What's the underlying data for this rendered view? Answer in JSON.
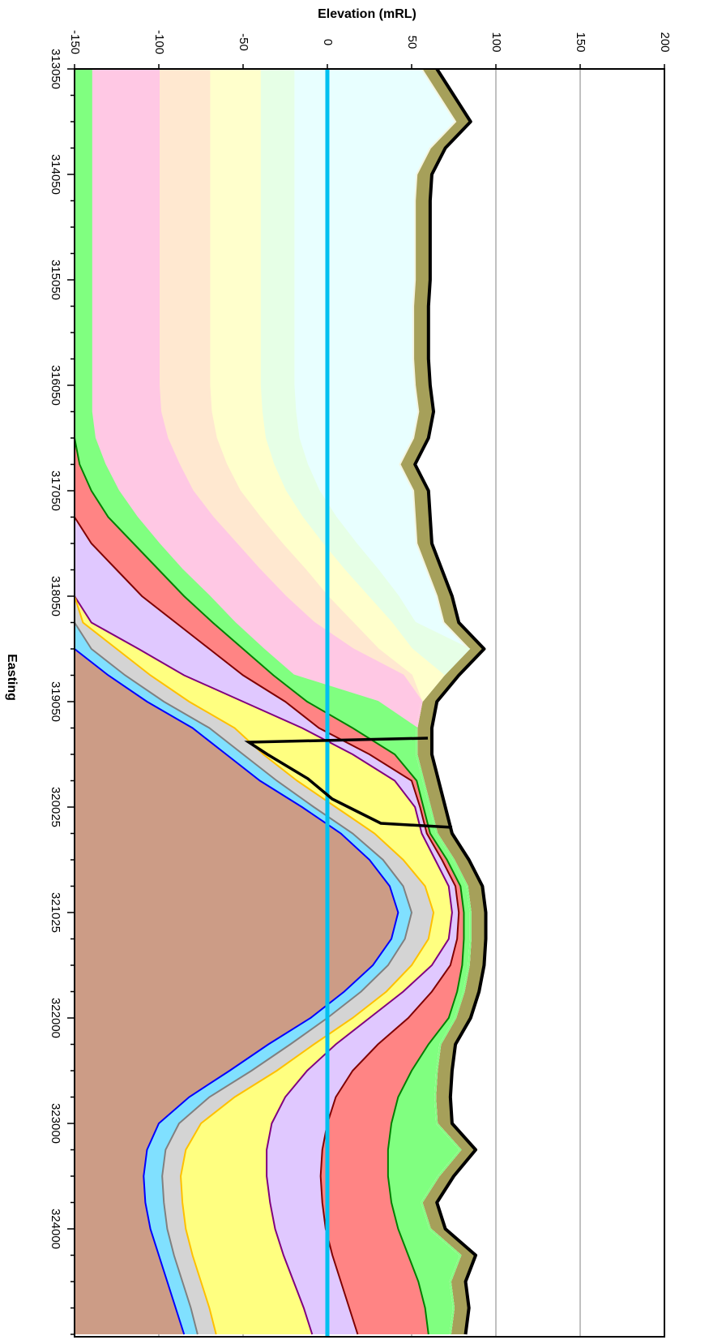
{
  "chart_data": {
    "type": "section",
    "xlabel": "Easting",
    "ylabel": "Elevation (mRL)",
    "ylim": [
      -150,
      200
    ],
    "yticks": [
      -150,
      -100,
      -50,
      0,
      50,
      100,
      150,
      200
    ],
    "grid": true,
    "hline": {
      "value": 0,
      "color": "#00c0f0"
    },
    "categories": [
      "313050",
      null,
      null,
      null,
      "314050",
      null,
      null,
      null,
      "315050",
      null,
      null,
      null,
      "316050",
      null,
      null,
      null,
      "317050",
      null,
      null,
      null,
      "318050",
      null,
      null,
      null,
      "319050",
      null,
      null,
      null,
      "320025",
      null,
      null,
      null,
      "321025",
      null,
      null,
      null,
      "322000",
      null,
      null,
      null,
      "323000",
      null,
      null,
      null,
      "324000",
      null,
      null,
      null,
      null
    ],
    "series": [
      {
        "color": "#a6a05a",
        "edge": "#000000",
        "values": [
          65,
          75,
          85,
          70,
          62,
          61,
          61,
          61,
          61,
          60,
          60,
          60,
          61,
          63,
          60,
          52,
          60,
          61,
          62,
          68,
          74,
          78,
          93,
          78,
          65,
          62,
          62,
          66,
          70,
          74,
          84,
          92,
          94,
          94,
          93,
          90,
          85,
          76,
          74,
          73,
          74,
          88,
          75,
          65,
          70,
          88,
          82,
          84,
          82
        ]
      },
      {
        "color": "#e8ffff",
        "edge": "#f4f4e0",
        "values": [
          56,
          66,
          76,
          61,
          53,
          52,
          52,
          52,
          52,
          51,
          51,
          51,
          52,
          54,
          51,
          43,
          51,
          52,
          53,
          59,
          65,
          69,
          84,
          69,
          56,
          53,
          53,
          57,
          61,
          65,
          75,
          83,
          85,
          85,
          84,
          81,
          76,
          67,
          65,
          64,
          65,
          79,
          66,
          56,
          61,
          79,
          73,
          75,
          73
        ]
      },
      {
        "color": "#e6ffe6",
        "edge": "#e6ffe6",
        "values": [
          -20,
          -20,
          -20,
          -20,
          -20,
          -20,
          -20,
          -20,
          -20,
          -20,
          -20,
          -20,
          -20,
          -19,
          -17,
          -12,
          -5,
          5,
          17,
          30,
          42,
          52,
          84,
          69,
          56,
          53,
          53,
          57,
          61,
          65,
          75,
          83,
          85,
          85,
          84,
          81,
          76,
          67,
          65,
          64,
          65,
          79,
          66,
          56,
          61,
          79,
          73,
          75,
          73
        ]
      },
      {
        "color": "#ffffcc",
        "edge": "#ffffcc",
        "values": [
          -40,
          -40,
          -40,
          -40,
          -40,
          -40,
          -40,
          -40,
          -40,
          -40,
          -40,
          -40,
          -40,
          -39,
          -37,
          -32,
          -25,
          -15,
          -3,
          10,
          24,
          38,
          50,
          69,
          56,
          53,
          53,
          57,
          61,
          65,
          75,
          83,
          85,
          85,
          84,
          81,
          76,
          67,
          65,
          64,
          65,
          79,
          66,
          56,
          61,
          79,
          73,
          75,
          73
        ]
      },
      {
        "color": "#ffe8d0",
        "edge": "#ffe8d0",
        "values": [
          -70,
          -70,
          -70,
          -70,
          -70,
          -70,
          -70,
          -70,
          -70,
          -70,
          -70,
          -70,
          -70,
          -69,
          -66,
          -60,
          -52,
          -40,
          -27,
          -13,
          0,
          15,
          30,
          50,
          56,
          53,
          53,
          57,
          61,
          65,
          75,
          83,
          85,
          85,
          84,
          81,
          76,
          67,
          65,
          64,
          65,
          79,
          66,
          56,
          61,
          79,
          73,
          75,
          73
        ]
      },
      {
        "color": "#ffc8e4",
        "edge": "#ffc8e4",
        "values": [
          -100,
          -100,
          -100,
          -100,
          -100,
          -100,
          -100,
          -100,
          -100,
          -100,
          -100,
          -100,
          -100,
          -99,
          -95,
          -88,
          -80,
          -68,
          -54,
          -40,
          -25,
          -8,
          15,
          45,
          56,
          53,
          53,
          57,
          61,
          65,
          75,
          83,
          85,
          85,
          84,
          81,
          76,
          67,
          65,
          64,
          65,
          79,
          66,
          56,
          61,
          79,
          73,
          75,
          73
        ]
      },
      {
        "color": "#80ff80",
        "edge": "#80ff80",
        "values": [
          -140,
          -140,
          -140,
          -140,
          -140,
          -140,
          -140,
          -140,
          -140,
          -140,
          -140,
          -140,
          -140,
          -140,
          -138,
          -132,
          -124,
          -113,
          -100,
          -86,
          -70,
          -55,
          -38,
          -20,
          30,
          53,
          53,
          57,
          61,
          65,
          75,
          83,
          85,
          85,
          84,
          81,
          76,
          67,
          65,
          64,
          65,
          79,
          66,
          56,
          61,
          79,
          73,
          75,
          73
        ]
      },
      {
        "color": "#ff8484",
        "edge": "#008000",
        "values": [
          -150,
          -150,
          -150,
          -150,
          -150,
          -150,
          -150,
          -150,
          -150,
          -150,
          -150,
          -150,
          -150,
          -150,
          -150,
          -147,
          -140,
          -130,
          -115,
          -100,
          -85,
          -68,
          -50,
          -32,
          -12,
          15,
          40,
          53,
          57,
          61,
          71,
          79,
          81,
          81,
          80,
          77,
          72,
          60,
          50,
          42,
          38,
          36,
          36,
          38,
          42,
          48,
          54,
          58,
          60
        ]
      },
      {
        "color": "#e0c8ff",
        "edge": "#800000",
        "values": [
          -150,
          -150,
          -150,
          -150,
          -150,
          -150,
          -150,
          -150,
          -150,
          -150,
          -150,
          -150,
          -150,
          -150,
          -150,
          -150,
          -150,
          -150,
          -140,
          -125,
          -110,
          -90,
          -70,
          -50,
          -25,
          -5,
          25,
          50,
          55,
          59,
          68,
          76,
          78,
          77,
          73,
          62,
          48,
          30,
          15,
          5,
          0,
          -3,
          -4,
          -3,
          -1,
          3,
          8,
          13,
          18
        ]
      },
      {
        "color": "#ffff80",
        "edge": "#800080",
        "values": [
          -150,
          -150,
          -150,
          -150,
          -150,
          -150,
          -150,
          -150,
          -150,
          -150,
          -150,
          -150,
          -150,
          -150,
          -150,
          -150,
          -150,
          -150,
          -150,
          -150,
          -150,
          -140,
          -112,
          -85,
          -50,
          -15,
          15,
          40,
          52,
          56,
          64,
          72,
          74,
          72,
          62,
          45,
          25,
          5,
          -12,
          -25,
          -33,
          -36,
          -36,
          -34,
          -31,
          -26,
          -20,
          -14,
          -9
        ]
      },
      {
        "color": "#d4d4d4",
        "edge": "#ffc000",
        "values": [
          -150,
          -150,
          -150,
          -150,
          -150,
          -150,
          -150,
          -150,
          -150,
          -150,
          -150,
          -150,
          -150,
          -150,
          -150,
          -150,
          -150,
          -150,
          -150,
          -150,
          -150,
          -145,
          -125,
          -105,
          -82,
          -55,
          -38,
          -18,
          5,
          28,
          45,
          58,
          63,
          60,
          50,
          35,
          15,
          -8,
          -30,
          -55,
          -75,
          -84,
          -87,
          -86,
          -84,
          -80,
          -75,
          -70,
          -66
        ]
      },
      {
        "color": "#80e0ff",
        "edge": "#808080",
        "values": [
          -150,
          -150,
          -150,
          -150,
          -150,
          -150,
          -150,
          -150,
          -150,
          -150,
          -150,
          -150,
          -150,
          -150,
          -150,
          -150,
          -150,
          -150,
          -150,
          -150,
          -150,
          -150,
          -140,
          -120,
          -97,
          -70,
          -50,
          -30,
          -8,
          15,
          33,
          45,
          50,
          46,
          36,
          20,
          0,
          -22,
          -45,
          -70,
          -88,
          -96,
          -98,
          -97,
          -95,
          -91,
          -86,
          -81,
          -77
        ]
      },
      {
        "color": "#cc9c86",
        "edge": "#0000ff",
        "values": [
          -150,
          -150,
          -150,
          -150,
          -150,
          -150,
          -150,
          -150,
          -150,
          -150,
          -150,
          -150,
          -150,
          -150,
          -150,
          -150,
          -150,
          -150,
          -150,
          -150,
          -150,
          -150,
          -150,
          -130,
          -107,
          -80,
          -60,
          -40,
          -15,
          8,
          25,
          37,
          42,
          38,
          27,
          10,
          -10,
          -35,
          -58,
          -82,
          -100,
          -107,
          -109,
          -108,
          -105,
          -100,
          -95,
          -90,
          -85
        ]
      }
    ]
  }
}
